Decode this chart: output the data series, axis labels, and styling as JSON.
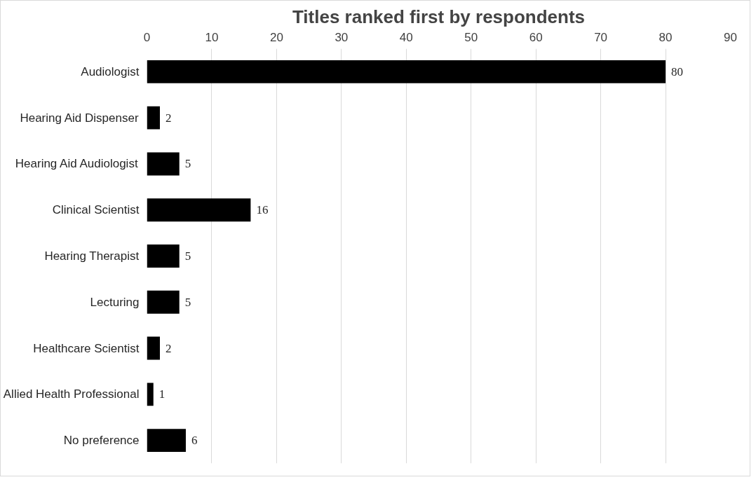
{
  "chart_data": {
    "type": "bar",
    "orientation": "horizontal",
    "title": "Titles ranked first by respondents",
    "categories": [
      "Audiologist",
      "Hearing Aid Dispenser",
      "Hearing Aid Audiologist",
      "Clinical Scientist",
      "Hearing Therapist",
      "Lecturing",
      "Healthcare Scientist",
      "Allied Health Professional",
      "No preference"
    ],
    "values": [
      80,
      2,
      5,
      16,
      5,
      5,
      2,
      1,
      6
    ],
    "color": "#000000",
    "xlim": [
      0,
      90
    ],
    "xticks": [
      0,
      10,
      20,
      30,
      40,
      50,
      60,
      70,
      80,
      90
    ],
    "grid": "x",
    "data_labels": true
  }
}
